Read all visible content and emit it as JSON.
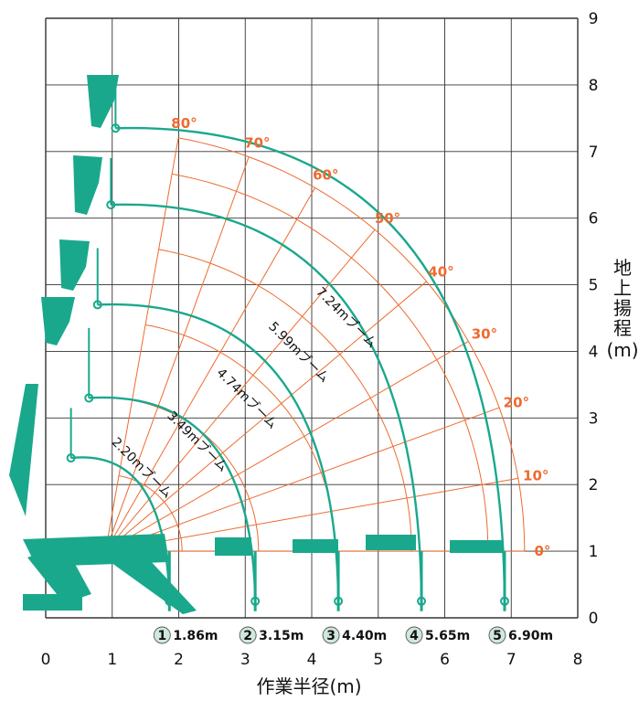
{
  "chart_data": {
    "type": "line",
    "title": "",
    "xlabel": "作業半径(m)",
    "ylabel_chars": [
      "地",
      "上",
      "揚",
      "程"
    ],
    "ylabel_unit": "(m)",
    "xlim": [
      0,
      8
    ],
    "ylim": [
      0,
      9
    ],
    "x_ticks": [
      "0",
      "1",
      "2",
      "3",
      "4",
      "5",
      "6",
      "7",
      "8"
    ],
    "y_ticks": [
      "0",
      "1",
      "2",
      "3",
      "4",
      "5",
      "6",
      "7",
      "8",
      "9"
    ],
    "grid": true,
    "boom_angle_labels": [
      "0°",
      "10°",
      "20°",
      "30°",
      "40°",
      "50°",
      "60°",
      "70°",
      "80°"
    ],
    "boom_angles": [
      0,
      10,
      20,
      30,
      40,
      50,
      60,
      70,
      80
    ],
    "boom_pivot": [
      0.9,
      1.0
    ],
    "colors": {
      "angle": "#ee6a2e",
      "boom": "#1aa88c",
      "grid": "#333333",
      "badge": "#cfe8dc"
    },
    "series": [
      {
        "name": "2.20mブーム",
        "top": [
          0.38,
          3.15
        ],
        "hook": [
          0.38,
          2.4
        ],
        "end": [
          1.86,
          0.25
        ]
      },
      {
        "name": "3.49mブーム",
        "top": [
          0.65,
          4.35
        ],
        "hook": [
          0.65,
          3.3
        ],
        "end": [
          3.15,
          0.25
        ]
      },
      {
        "name": "4.74mブーム",
        "top": [
          0.78,
          5.55
        ],
        "hook": [
          0.78,
          4.7
        ],
        "end": [
          4.4,
          0.25
        ]
      },
      {
        "name": "5.99mブーム",
        "top": [
          0.98,
          6.9
        ],
        "hook": [
          0.98,
          6.2
        ],
        "end": [
          5.65,
          0.25
        ]
      },
      {
        "name": "7.24mブーム",
        "top": [
          1.05,
          8.1
        ],
        "hook": [
          1.05,
          7.35
        ],
        "end": [
          6.9,
          0.25
        ]
      }
    ],
    "radius_markers": [
      {
        "num": "1",
        "label": "1.86m",
        "x": 1.86
      },
      {
        "num": "2",
        "label": "3.15m",
        "x": 3.15
      },
      {
        "num": "3",
        "label": "4.40m",
        "x": 4.4
      },
      {
        "num": "4",
        "label": "5.65m",
        "x": 5.65
      },
      {
        "num": "5",
        "label": "6.90m",
        "x": 6.9
      }
    ]
  }
}
